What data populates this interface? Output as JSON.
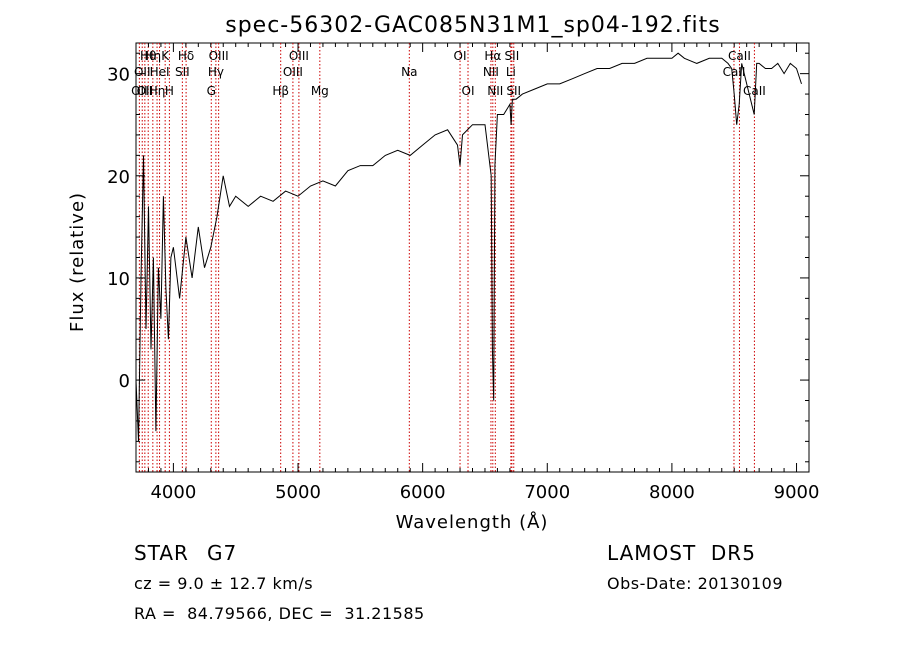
{
  "chart_data": {
    "type": "line",
    "title": "spec-56302-GAC085N31M1_sp04-192.fits",
    "xlabel": "Wavelength (Å)",
    "ylabel": "Flux (relative)",
    "xlim": [
      3700,
      9100
    ],
    "ylim": [
      -9,
      33
    ],
    "x_ticks": [
      4000,
      5000,
      6000,
      7000,
      8000,
      9000
    ],
    "y_ticks": [
      0,
      10,
      20,
      30
    ],
    "grid": false,
    "series_color": "#000000",
    "line_color": "#cc0000",
    "spectrum": {
      "x": [
        3700,
        3720,
        3740,
        3760,
        3780,
        3800,
        3820,
        3840,
        3860,
        3880,
        3900,
        3920,
        3940,
        3960,
        3980,
        4000,
        4050,
        4100,
        4150,
        4200,
        4250,
        4300,
        4350,
        4400,
        4450,
        4500,
        4600,
        4700,
        4800,
        4900,
        5000,
        5100,
        5200,
        5300,
        5400,
        5500,
        5600,
        5700,
        5800,
        5900,
        6000,
        6100,
        6200,
        6280,
        6300,
        6320,
        6400,
        6500,
        6550,
        6560,
        6570,
        6580,
        6600,
        6650,
        6700,
        6710,
        6720,
        6750,
        6800,
        6900,
        7000,
        7100,
        7200,
        7300,
        7400,
        7500,
        7600,
        7700,
        7800,
        7900,
        8000,
        8050,
        8100,
        8200,
        8300,
        8400,
        8450,
        8480,
        8500,
        8520,
        8540,
        8560,
        8600,
        8640,
        8660,
        8680,
        8700,
        8750,
        8800,
        8850,
        8900,
        8950,
        9000,
        9040
      ],
      "y": [
        0,
        -6,
        10,
        22,
        5,
        17,
        3,
        12,
        -5,
        11,
        6,
        18,
        9,
        4,
        12,
        13,
        8,
        14,
        10,
        15,
        11,
        13,
        16,
        20,
        17,
        18,
        17,
        18,
        17.5,
        18.5,
        18,
        19,
        19.5,
        19,
        20.5,
        21,
        21,
        22,
        22.5,
        22,
        23,
        24,
        24.5,
        23,
        21,
        24,
        25,
        25,
        20,
        3,
        -2,
        21,
        26,
        26,
        27,
        25,
        27.5,
        27.5,
        28,
        28.5,
        29,
        29,
        29.5,
        30,
        30.5,
        30.5,
        31,
        31,
        31.5,
        31.5,
        31.5,
        32,
        31.5,
        31,
        31.5,
        31.5,
        31,
        30.5,
        28,
        25,
        27,
        31,
        29,
        27,
        26,
        31,
        31,
        30.5,
        30.5,
        31,
        30,
        31,
        30.5,
        29
      ]
    },
    "lines": [
      {
        "x": 3727,
        "row": 2,
        "label": "OII"
      },
      {
        "x": 3750,
        "row": 1,
        "label": "OII"
      },
      {
        "x": 3771,
        "row": 2,
        "label": "OII"
      },
      {
        "x": 3798,
        "row": 0,
        "label": "Hθ"
      },
      {
        "x": 3835,
        "row": 0,
        "label": "Hη"
      },
      {
        "x": 3869,
        "row": 2,
        "label": "Hη"
      },
      {
        "x": 3889,
        "row": 1,
        "label": "HeI"
      },
      {
        "x": 3934,
        "row": 0,
        "label": "K"
      },
      {
        "x": 3968,
        "row": 2,
        "label": "H"
      },
      {
        "x": 4072,
        "row": 1,
        "label": "SII"
      },
      {
        "x": 4102,
        "row": 0,
        "label": "Hδ"
      },
      {
        "x": 4304,
        "row": 2,
        "label": "G"
      },
      {
        "x": 4341,
        "row": 1,
        "label": "Hγ"
      },
      {
        "x": 4363,
        "row": 0,
        "label": "OIII"
      },
      {
        "x": 4861,
        "row": 2,
        "label": "Hβ"
      },
      {
        "x": 4959,
        "row": 1,
        "label": "OIII"
      },
      {
        "x": 5007,
        "row": 0,
        "label": "OIII"
      },
      {
        "x": 5175,
        "row": 2,
        "label": "Mg"
      },
      {
        "x": 5893,
        "row": 1,
        "label": "Na"
      },
      {
        "x": 6300,
        "row": 0,
        "label": "OI"
      },
      {
        "x": 6364,
        "row": 2,
        "label": "OI"
      },
      {
        "x": 6548,
        "row": 1,
        "label": "NII"
      },
      {
        "x": 6563,
        "row": 0,
        "label": "Hα"
      },
      {
        "x": 6583,
        "row": 2,
        "label": "NII"
      },
      {
        "x": 6708,
        "row": 1,
        "label": "Li"
      },
      {
        "x": 6716,
        "row": 0,
        "label": "SII"
      },
      {
        "x": 6731,
        "row": 2,
        "label": "SII"
      },
      {
        "x": 8498,
        "row": 1,
        "label": "CaII"
      },
      {
        "x": 8542,
        "row": 0,
        "label": "CaII"
      },
      {
        "x": 8662,
        "row": 2,
        "label": "CaII"
      }
    ]
  },
  "info": {
    "class": "STAR",
    "subclass": "G7",
    "survey": "LAMOST  DR5",
    "redshift": "cz = 9.0 ± 12.7 km/s",
    "obs_date": "Obs-Date: 20130109",
    "coords": "RA =  84.79566, DEC =  31.21585"
  }
}
